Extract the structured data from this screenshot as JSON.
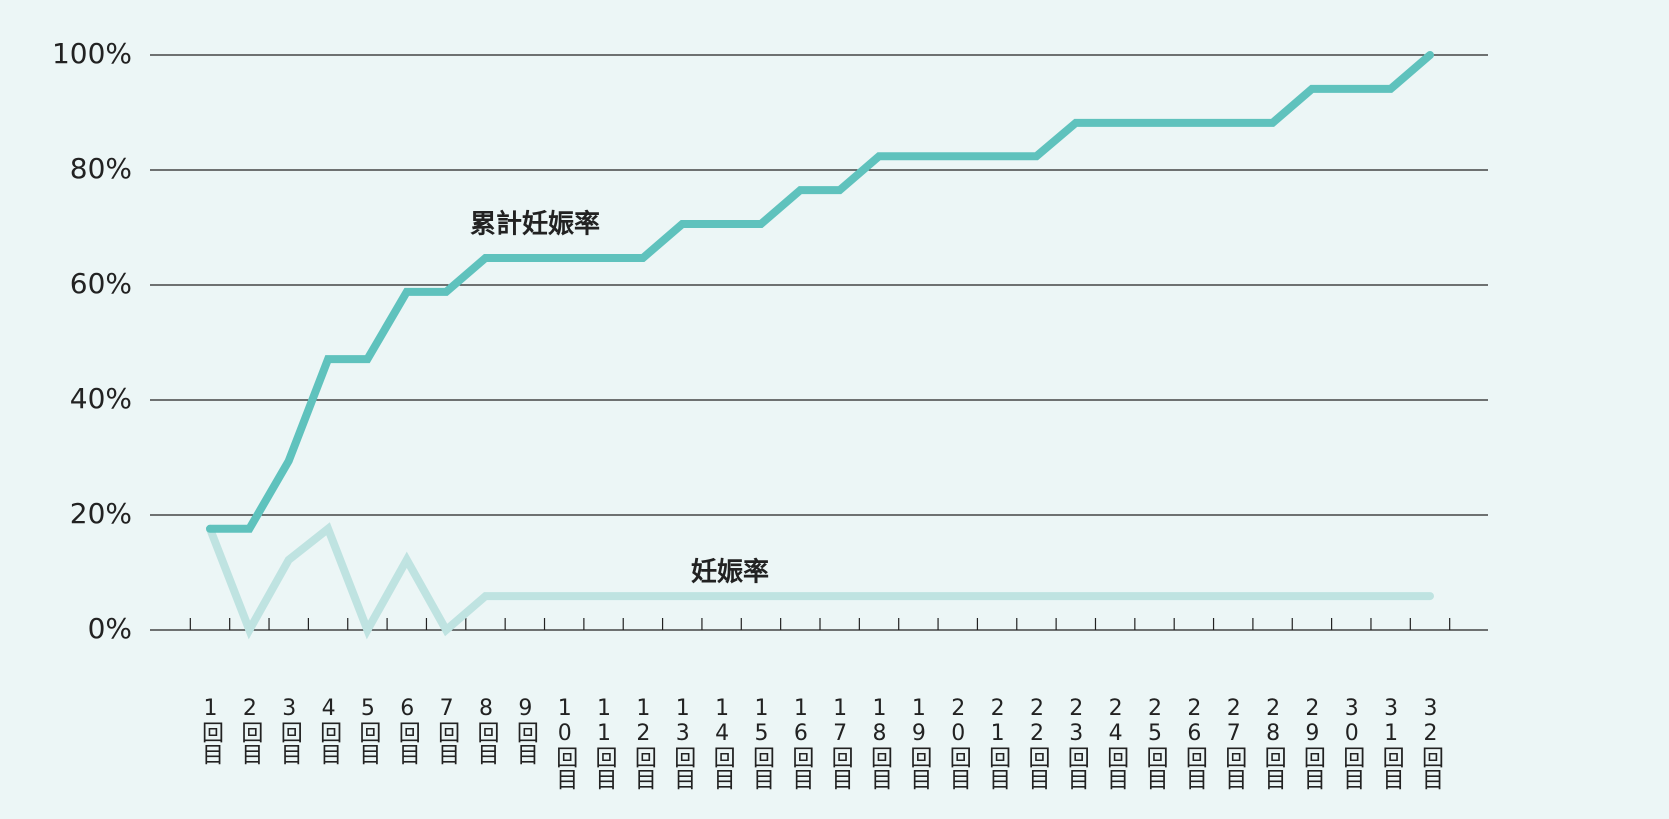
{
  "chart_data": {
    "type": "line",
    "categories": [
      "1回目",
      "2回目",
      "3回目",
      "4回目",
      "5回目",
      "6回目",
      "7回目",
      "8回目",
      "9回目",
      "10回目",
      "11回目",
      "12回目",
      "13回目",
      "14回目",
      "15回目",
      "16回目",
      "17回目",
      "18回目",
      "19回目",
      "20回目",
      "21回目",
      "22回目",
      "23回目",
      "24回目",
      "25回目",
      "26回目",
      "27回目",
      "28回目",
      "29回目",
      "30回目",
      "31回目",
      "32回目"
    ],
    "series": [
      {
        "name": "累計妊娠率",
        "color": "#5fc2bd",
        "values": [
          17.6,
          17.6,
          29.4,
          47.1,
          47.1,
          58.8,
          58.8,
          64.7,
          64.7,
          64.7,
          64.7,
          64.7,
          70.6,
          70.6,
          70.6,
          76.5,
          76.5,
          82.4,
          82.4,
          82.4,
          82.4,
          82.4,
          88.2,
          88.2,
          88.2,
          88.2,
          88.2,
          88.2,
          94.1,
          94.1,
          94.1,
          100
        ]
      },
      {
        "name": "妊娠率",
        "color": "#bfe3e1",
        "values": [
          17.6,
          0,
          12.2,
          17.6,
          0,
          12.2,
          0,
          5.9,
          5.9,
          5.9,
          5.9,
          5.9,
          5.9,
          5.9,
          5.9,
          5.9,
          5.9,
          5.9,
          5.9,
          5.9,
          5.9,
          5.9,
          5.9,
          5.9,
          5.9,
          5.9,
          5.9,
          5.9,
          5.9,
          5.9,
          5.9,
          5.9
        ]
      }
    ],
    "ylim": [
      0,
      100
    ],
    "yticks": [
      {
        "value": 0,
        "label": "0%"
      },
      {
        "value": 20,
        "label": "20%"
      },
      {
        "value": 40,
        "label": "40%"
      },
      {
        "value": 60,
        "label": "60%"
      },
      {
        "value": 80,
        "label": "80%"
      },
      {
        "value": 100,
        "label": "100%"
      }
    ],
    "grid": true
  }
}
